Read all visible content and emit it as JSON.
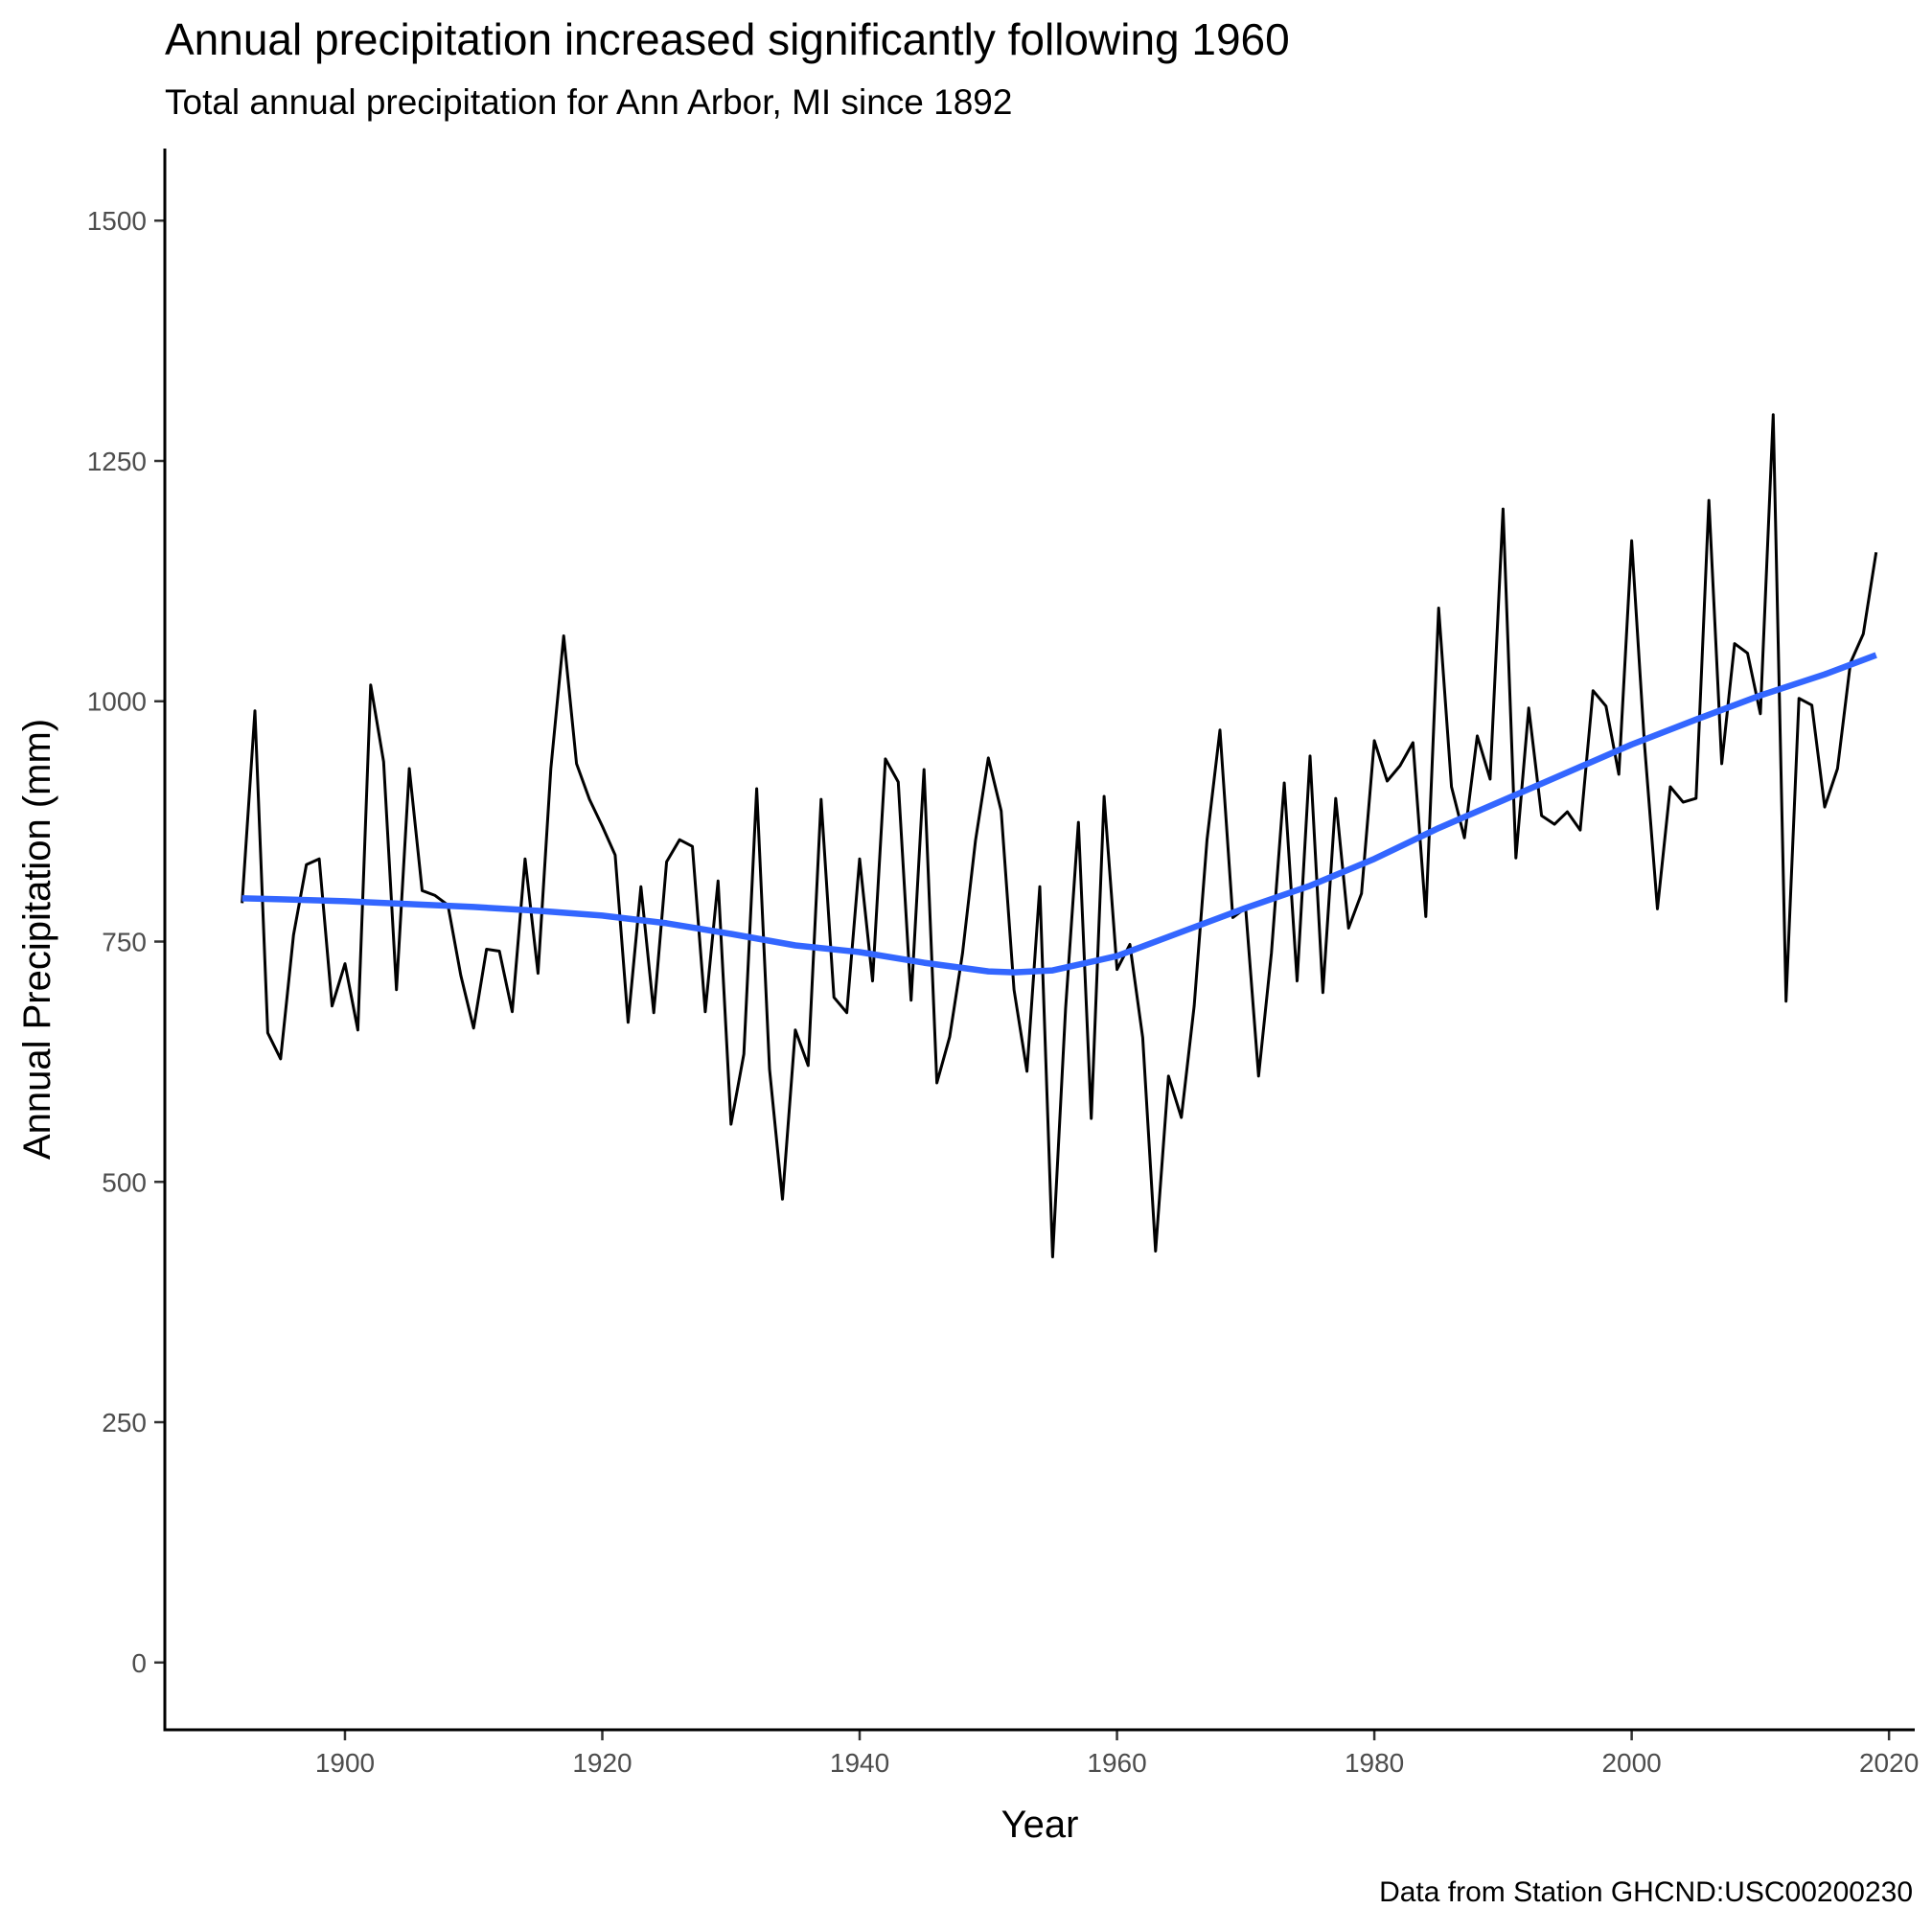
{
  "chart_data": {
    "type": "line",
    "title": "Annual precipitation increased significantly following 1960",
    "subtitle": "Total annual precipitation for Ann Arbor, MI since 1892",
    "caption": "Data from Station GHCND:USC00200230",
    "xlabel": "Year",
    "ylabel": "Annual Precipitation (mm)",
    "xlim": [
      1886,
      2022
    ],
    "ylim": [
      -70,
      1575
    ],
    "xticks": [
      1900,
      1920,
      1940,
      1960,
      1980,
      2000,
      2020
    ],
    "yticks": [
      0,
      250,
      500,
      750,
      1000,
      1250,
      1500
    ],
    "grid": false,
    "legend": "none",
    "series": [
      {
        "color": "#000000",
        "x": [
          1892,
          1893,
          1894,
          1895,
          1896,
          1897,
          1898,
          1899,
          1900,
          1901,
          1902,
          1903,
          1904,
          1905,
          1906,
          1907,
          1908,
          1909,
          1910,
          1911,
          1912,
          1913,
          1914,
          1915,
          1916,
          1917,
          1918,
          1919,
          1920,
          1921,
          1922,
          1923,
          1924,
          1925,
          1926,
          1927,
          1928,
          1929,
          1930,
          1931,
          1932,
          1933,
          1934,
          1935,
          1936,
          1937,
          1938,
          1939,
          1940,
          1941,
          1942,
          1943,
          1944,
          1945,
          1946,
          1947,
          1948,
          1949,
          1950,
          1951,
          1952,
          1953,
          1954,
          1955,
          1956,
          1957,
          1958,
          1959,
          1960,
          1961,
          1962,
          1963,
          1964,
          1965,
          1966,
          1967,
          1968,
          1969,
          1970,
          1971,
          1972,
          1973,
          1974,
          1975,
          1976,
          1977,
          1978,
          1979,
          1980,
          1981,
          1982,
          1983,
          1984,
          1985,
          1986,
          1987,
          1988,
          1989,
          1990,
          1991,
          1992,
          1993,
          1994,
          1995,
          1996,
          1997,
          1998,
          1999,
          2000,
          2001,
          2002,
          2003,
          2004,
          2005,
          2006,
          2007,
          2008,
          2009,
          2010,
          2011,
          2012,
          2013,
          2014,
          2015,
          2016,
          2017,
          2018,
          2019
        ],
        "y": [
          790,
          990,
          655,
          628,
          757,
          830,
          836,
          683,
          727,
          658,
          1017,
          937,
          700,
          930,
          803,
          798,
          788,
          715,
          660,
          742,
          740,
          677,
          836,
          717,
          930,
          1068,
          935,
          898,
          870,
          840,
          666,
          807,
          676,
          833,
          856,
          849,
          677,
          813,
          560,
          633,
          909,
          617,
          482,
          658,
          621,
          898,
          692,
          676,
          836,
          709,
          940,
          916,
          689,
          929,
          603,
          651,
          738,
          855,
          941,
          886,
          700,
          615,
          807,
          422,
          680,
          874,
          566,
          901,
          721,
          747,
          650,
          428,
          610,
          567,
          683,
          856,
          970,
          775,
          785,
          610,
          738,
          915,
          709,
          943,
          697,
          899,
          764,
          800,
          959,
          917,
          933,
          957,
          776,
          1097,
          911,
          858,
          964,
          919,
          1200,
          837,
          993,
          881,
          872,
          885,
          866,
          1011,
          995,
          924,
          1167,
          955,
          784,
          911,
          895,
          899,
          1209,
          935,
          1060,
          1050,
          987,
          1298,
          688,
          1003,
          996,
          890,
          930,
          1040,
          1070,
          1155
        ]
      },
      {
        "color": "#3366ff",
        "x": [
          1892,
          1895,
          1900,
          1905,
          1910,
          1915,
          1920,
          1925,
          1930,
          1935,
          1940,
          1945,
          1950,
          1952,
          1955,
          1960,
          1965,
          1970,
          1975,
          1980,
          1985,
          1990,
          1995,
          2000,
          2005,
          2010,
          2015,
          2019
        ],
        "y": [
          795,
          794,
          792,
          789,
          786,
          782,
          777,
          769,
          758,
          746,
          739,
          728,
          719,
          718,
          720,
          735,
          760,
          785,
          808,
          836,
          868,
          897,
          926,
          955,
          981,
          1006,
          1028,
          1048
        ]
      }
    ]
  }
}
